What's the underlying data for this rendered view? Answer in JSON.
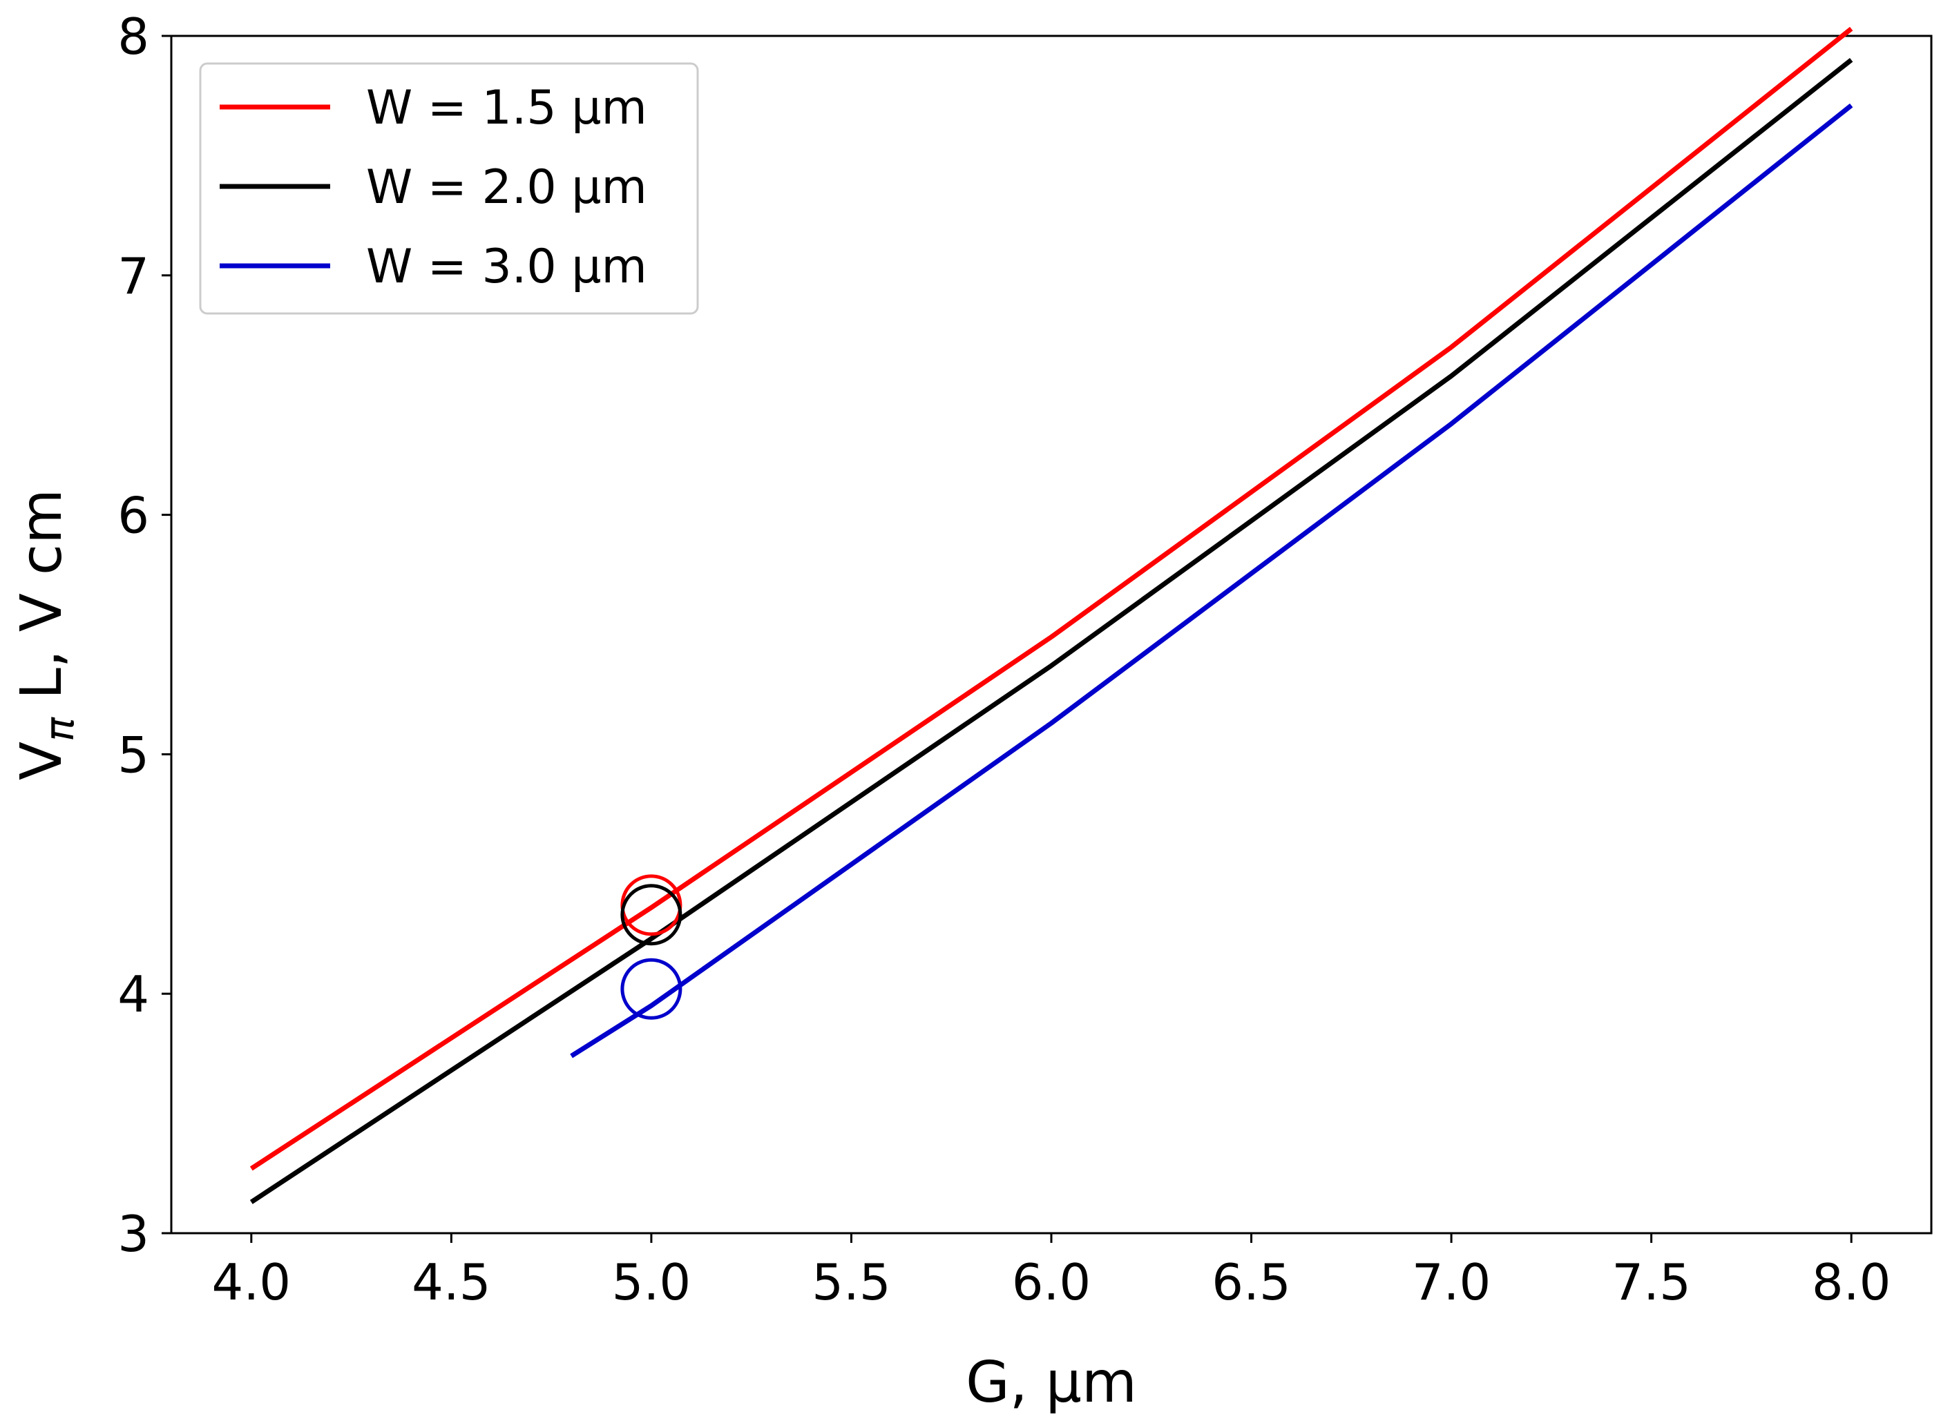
{
  "chart_data": {
    "type": "line",
    "title": "",
    "xlabel": "G, μm",
    "ylabel": "Vπ L, V cm",
    "ylabel_main": "V",
    "ylabel_subscript": "π",
    "ylabel_rest": " L, V cm",
    "xlim": [
      3.8,
      8.2
    ],
    "ylim": [
      3,
      8
    ],
    "xticks": [
      4.0,
      4.5,
      5.0,
      5.5,
      6.0,
      6.5,
      7.0,
      7.5,
      8.0
    ],
    "xtick_labels": [
      "4.0",
      "4.5",
      "5.0",
      "5.5",
      "6.0",
      "6.5",
      "7.0",
      "7.5",
      "8.0"
    ],
    "yticks": [
      3,
      4,
      5,
      6,
      7,
      8
    ],
    "ytick_labels": [
      "3",
      "4",
      "5",
      "6",
      "7",
      "8"
    ],
    "grid": false,
    "legend_position": "top-left",
    "series": [
      {
        "name": "W = 1.5 μm",
        "color": "#ff0000",
        "x": [
          4.0,
          5.0,
          6.0,
          7.0,
          8.0
        ],
        "y": [
          3.27,
          4.36,
          5.49,
          6.7,
          8.03
        ]
      },
      {
        "name": "W = 2.0 μm",
        "color": "#000000",
        "x": [
          4.0,
          5.0,
          6.0,
          7.0,
          8.0
        ],
        "y": [
          3.13,
          4.23,
          5.37,
          6.58,
          7.9
        ]
      },
      {
        "name": "W = 3.0 μm",
        "color": "#0000cc",
        "x": [
          4.8,
          5.0,
          6.0,
          7.0,
          8.0
        ],
        "y": [
          3.74,
          3.95,
          5.13,
          6.38,
          7.71
        ]
      }
    ],
    "markers": [
      {
        "series": "W = 1.5 μm",
        "x": 5.0,
        "y": 4.37,
        "shape": "open-circle",
        "color": "#ff0000"
      },
      {
        "series": "W = 2.0 μm",
        "x": 5.0,
        "y": 4.33,
        "shape": "open-circle",
        "color": "#000000"
      },
      {
        "series": "W = 3.0 μm",
        "x": 5.0,
        "y": 4.02,
        "shape": "open-circle",
        "color": "#0000cc"
      }
    ]
  }
}
